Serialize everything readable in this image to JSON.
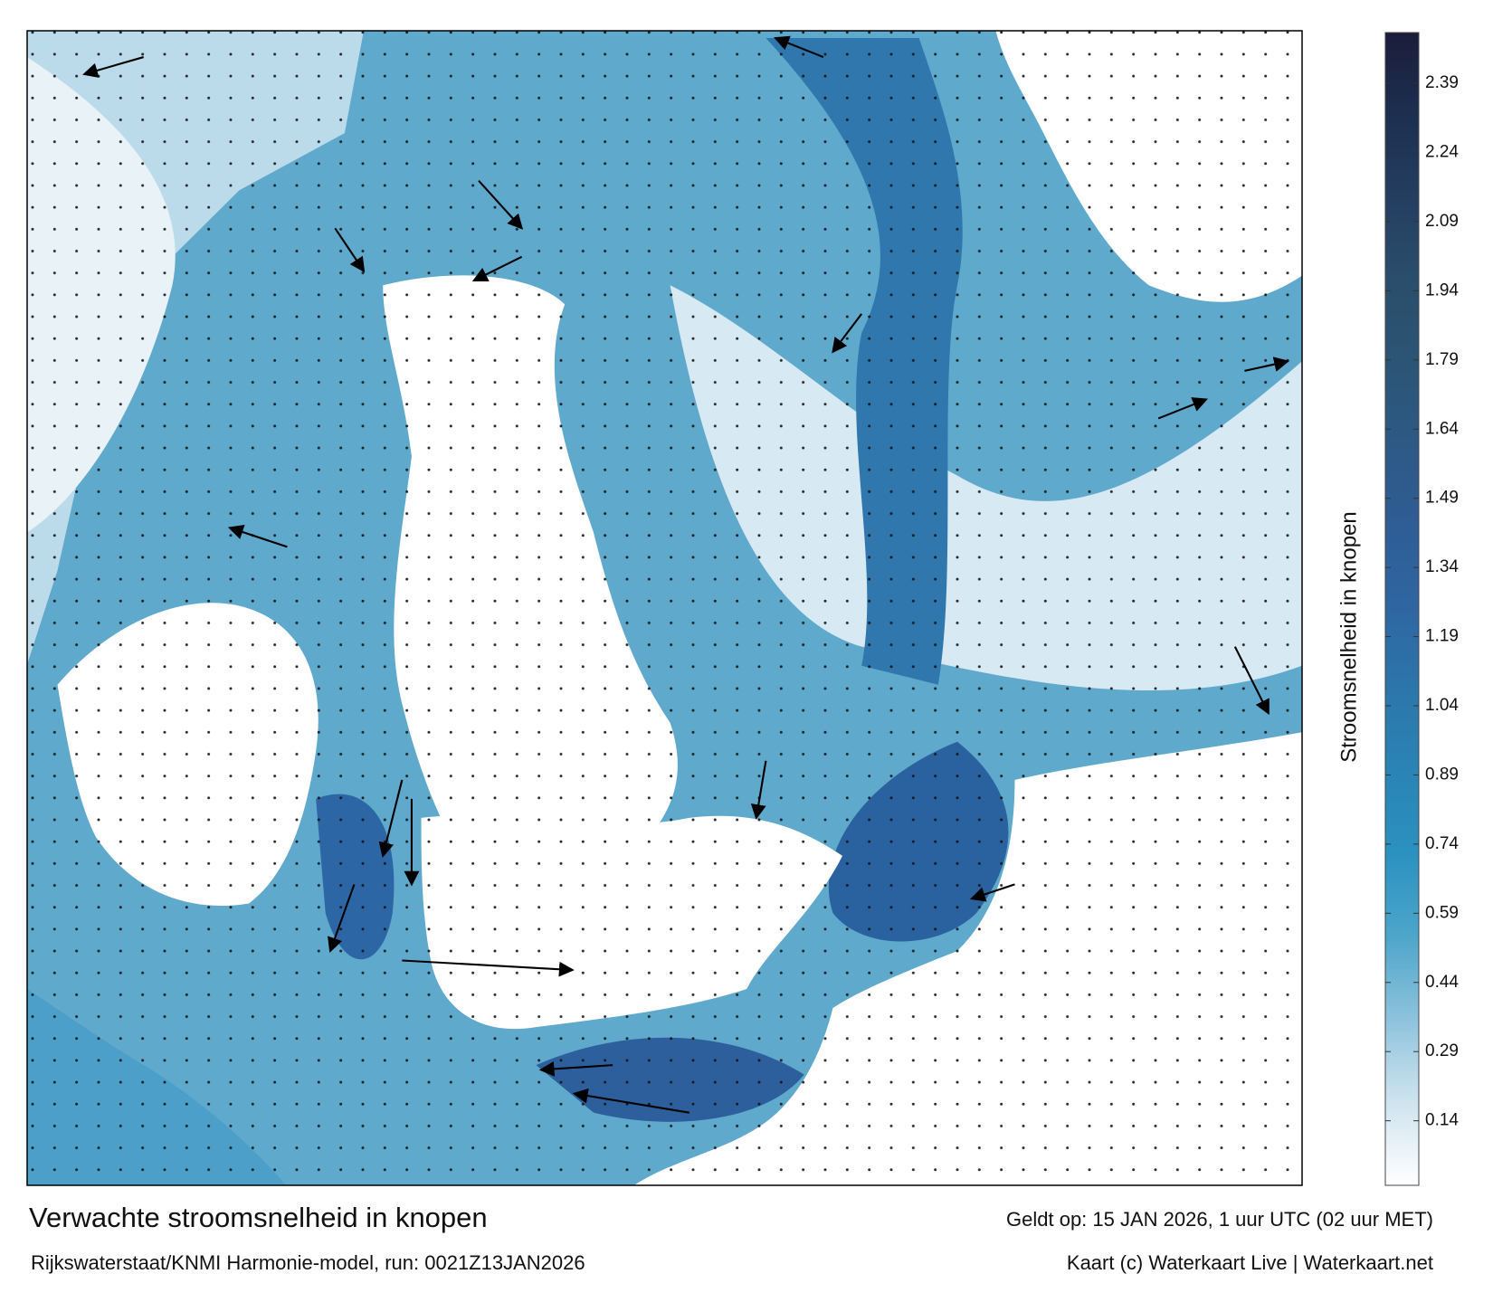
{
  "title": "Verwachte stroomsnelheid in knopen",
  "subtitle": "Rijkswaterstaat/KNMI Harmonie-model, run: 0021Z13JAN2026",
  "valid": "Geldt op: 15 JAN 2026, 1 uur UTC (02 uur MET)",
  "credit": "Kaart (c) Waterkaart Live | Waterkaart.net",
  "colorbar": {
    "label": "Stroomsnelheid in knopen",
    "range": [
      0,
      2.5
    ],
    "ticks": [
      0.14,
      0.29,
      0.44,
      0.59,
      0.74,
      0.89,
      1.04,
      1.19,
      1.34,
      1.49,
      1.64,
      1.79,
      1.94,
      2.09,
      2.24,
      2.39
    ],
    "colors": [
      "#ffffff",
      "#cfe4ef",
      "#8fc3dc",
      "#4ea6cb",
      "#2b92c0",
      "#2a84b5",
      "#2c76ab",
      "#2f66a2",
      "#2f5d95",
      "#2d5985",
      "#2c5474",
      "#2a4e6b",
      "#243e60",
      "#1d2f50",
      "#1b1d3a"
    ]
  }
}
